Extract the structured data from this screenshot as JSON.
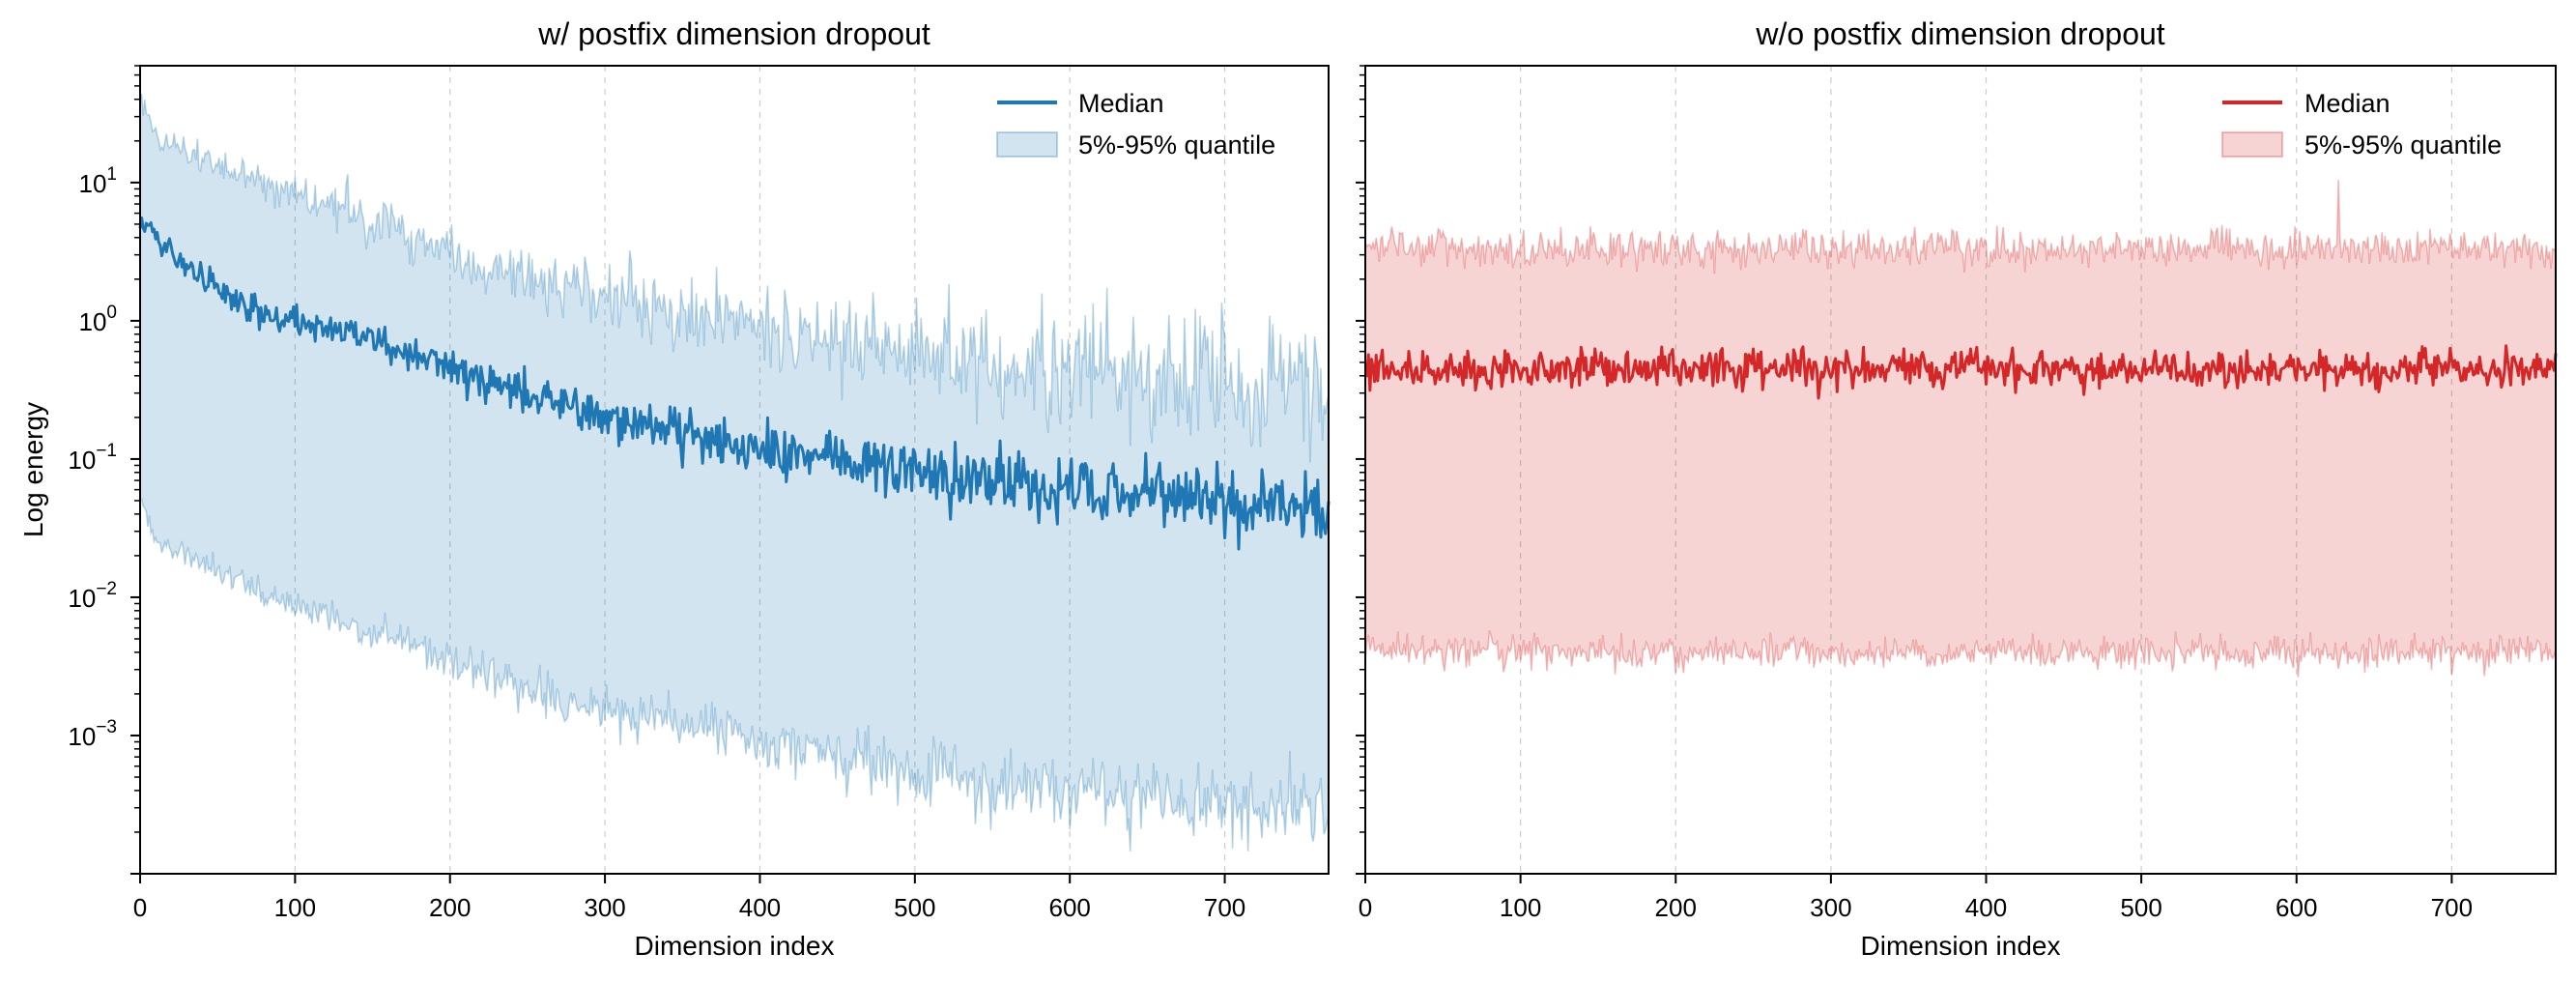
{
  "chart_data": [
    {
      "type": "line",
      "title": "w/ postfix dimension dropout",
      "xlabel": "Dimension index",
      "ylabel": "Log energy",
      "xlim": [
        0,
        767
      ],
      "ylim": [
        0.0001,
        70
      ],
      "yscale": "log",
      "xticks": [
        "0",
        "100",
        "200",
        "300",
        "400",
        "500",
        "600",
        "700"
      ],
      "yticks": [
        {
          "value": 10,
          "base": "10",
          "exp": "1"
        },
        {
          "value": 1,
          "base": "10",
          "exp": "0"
        },
        {
          "value": 0.1,
          "base": "10",
          "exp": "−1"
        },
        {
          "value": 0.01,
          "base": "10",
          "exp": "−2"
        },
        {
          "value": 0.001,
          "base": "10",
          "exp": "−3"
        }
      ],
      "grid": "vertical dashed",
      "legend_position": "top-right",
      "band_shown_values": {
        "upper_at_x0": 40,
        "lower_at_x0": 0.05,
        "upper_at_x767": 0.3,
        "lower_at_x767": 0.0003
      },
      "median_shown_values": {
        "at_x0": 5.5,
        "at_x767": 0.045
      },
      "series": [
        {
          "name": "Median",
          "kind": "line",
          "color": "#1f77b4",
          "x": [
            0,
            10,
            50,
            100,
            150,
            200,
            250,
            300,
            350,
            400,
            450,
            500,
            550,
            600,
            650,
            700,
            767
          ],
          "values": [
            5.5,
            4.0,
            1.6,
            1.0,
            0.75,
            0.45,
            0.3,
            0.2,
            0.15,
            0.12,
            0.1,
            0.082,
            0.07,
            0.062,
            0.055,
            0.048,
            0.045
          ]
        },
        {
          "name": "5%-95% quantile",
          "kind": "band",
          "color": "#1f77b4",
          "x": [
            0,
            10,
            50,
            100,
            150,
            200,
            250,
            300,
            350,
            400,
            450,
            500,
            550,
            600,
            650,
            700,
            767
          ],
          "upper": [
            40,
            22,
            13,
            8,
            5.5,
            3.2,
            2.0,
            1.5,
            1.2,
            0.9,
            0.75,
            0.6,
            0.5,
            0.45,
            0.4,
            0.35,
            0.3
          ],
          "lower": [
            0.05,
            0.025,
            0.015,
            0.009,
            0.0055,
            0.0035,
            0.0022,
            0.0015,
            0.0012,
            0.0009,
            0.0007,
            0.00055,
            0.00045,
            0.0004,
            0.00035,
            0.0003,
            0.0003
          ]
        }
      ]
    },
    {
      "type": "line",
      "title": "w/o postfix dimension dropout",
      "xlabel": "Dimension index",
      "ylabel": "",
      "xlim": [
        0,
        767
      ],
      "ylim": [
        0.0001,
        70
      ],
      "yscale": "log",
      "xticks": [
        "0",
        "100",
        "200",
        "300",
        "400",
        "500",
        "600",
        "700"
      ],
      "grid": "vertical dashed",
      "legend_position": "top-right",
      "band_shown_values": {
        "upper_typical": 3.3,
        "lower_typical": 0.004,
        "upper_spike_x": 627,
        "upper_spike_value": 10.5
      },
      "median_shown_values": {
        "typical": 0.45
      },
      "series": [
        {
          "name": "Median",
          "kind": "line",
          "color": "#d62728",
          "x": [
            0,
            767
          ],
          "values": [
            0.45,
            0.45
          ]
        },
        {
          "name": "5%-95% quantile",
          "kind": "band",
          "color": "#d62728",
          "x": [
            0,
            767
          ],
          "upper": [
            3.3,
            3.3
          ],
          "lower": [
            0.004,
            0.004
          ]
        }
      ]
    }
  ]
}
